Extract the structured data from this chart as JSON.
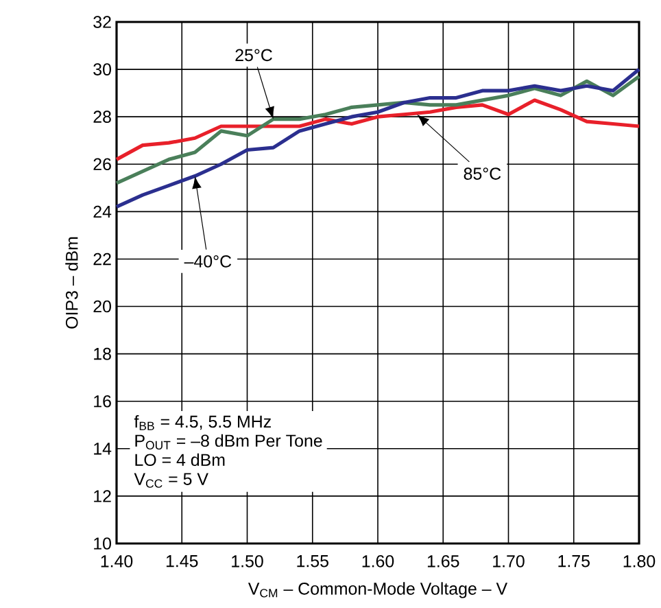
{
  "chart_data": {
    "type": "line",
    "xlabel": "V$_{CM}$ – Common-Mode Voltage – V",
    "ylabel": "OIP3 – dBm",
    "x": [
      1.4,
      1.42,
      1.44,
      1.46,
      1.48,
      1.5,
      1.52,
      1.54,
      1.56,
      1.58,
      1.6,
      1.62,
      1.64,
      1.66,
      1.68,
      1.7,
      1.72,
      1.74,
      1.76,
      1.78,
      1.8
    ],
    "series": [
      {
        "color": "#e8202a",
        "values": [
          26.2,
          26.8,
          26.9,
          27.1,
          27.6,
          27.6,
          27.6,
          27.6,
          27.9,
          27.7,
          28.0,
          28.1,
          28.2,
          28.4,
          28.5,
          28.1,
          28.7,
          28.3,
          27.8,
          27.7,
          27.6
        ]
      },
      {
        "color": "#4a7f5a",
        "values": [
          25.2,
          25.7,
          26.2,
          26.5,
          27.4,
          27.2,
          27.9,
          27.9,
          28.1,
          28.4,
          28.5,
          28.6,
          28.5,
          28.5,
          28.7,
          28.9,
          29.2,
          28.9,
          29.5,
          28.9,
          29.7
        ]
      },
      {
        "color": "#2b2f8f",
        "values": [
          24.2,
          24.7,
          25.1,
          25.5,
          26.0,
          26.6,
          26.7,
          27.4,
          27.7,
          28.0,
          28.2,
          28.6,
          28.8,
          28.8,
          29.1,
          29.1,
          29.3,
          29.1,
          29.3,
          29.1,
          30.0
        ]
      }
    ],
    "xlim": [
      1.4,
      1.8
    ],
    "ylim": [
      10,
      32
    ],
    "xticks": [
      {
        "value": 1.4,
        "label": "1.40"
      },
      {
        "value": 1.45,
        "label": "1.45"
      },
      {
        "value": 1.5,
        "label": "1.50"
      },
      {
        "value": 1.55,
        "label": "1.55"
      },
      {
        "value": 1.6,
        "label": "1.60"
      },
      {
        "value": 1.65,
        "label": "1.65"
      },
      {
        "value": 1.7,
        "label": "1.70"
      },
      {
        "value": 1.75,
        "label": "1.75"
      },
      {
        "value": 1.8,
        "label": "1.80"
      }
    ],
    "yticks": [
      10,
      12,
      14,
      16,
      18,
      20,
      22,
      24,
      26,
      28,
      30,
      32
    ],
    "grid": true,
    "marker": "none",
    "line_style": "solid",
    "annotations": [
      {
        "text": "25°C",
        "x": 1.52,
        "y": 27.9
      },
      {
        "text": "–40°C",
        "x": 1.46,
        "y": 25.5
      },
      {
        "text": "85°C",
        "x": 1.63,
        "y": 28.1
      },
      "f$_{BB}$ = 4.5, 5.5 MHz",
      "P$_{OUT}$ = –8 dBm Per Tone",
      "LO = 4 dBm",
      "V$_{CC}$ =  5 V"
    ]
  }
}
